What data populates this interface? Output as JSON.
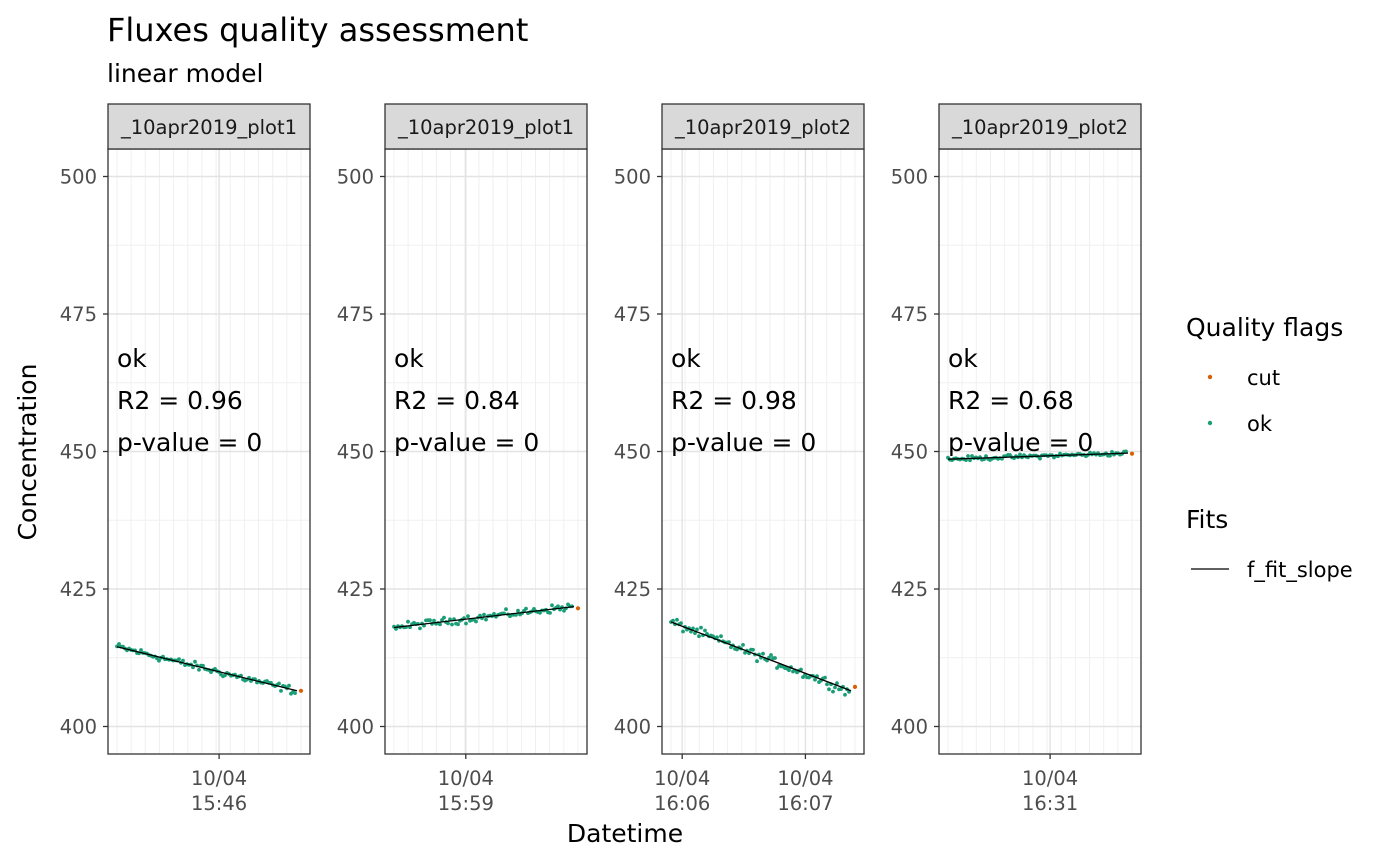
{
  "chart_data": {
    "type": "scatter",
    "title": "Fluxes quality assessment",
    "subtitle": "linear model",
    "xlabel": "Datetime",
    "ylabel": "Concentration",
    "ylim": [
      395,
      505
    ],
    "yticks": [
      400,
      425,
      450,
      475,
      500
    ],
    "grid": true,
    "legend_position": "right",
    "legend": {
      "quality_title": "Quality flags",
      "quality_entries": [
        {
          "label": "cut",
          "color": "#D95F02"
        },
        {
          "label": "ok",
          "color": "#1B9E77"
        }
      ],
      "fits_title": "Fits",
      "fits_entries": [
        {
          "label": "f_fit_slope",
          "color": "#000000"
        }
      ]
    },
    "panels": [
      {
        "strip": "_10apr2019_plot1",
        "ticks": [
          {
            "date": "10/04",
            "time": "15:46",
            "pos": 0.55
          }
        ],
        "annotation": [
          "ok",
          "R2 = 0.96",
          "p-value = 0"
        ],
        "fit": {
          "start": 414.5,
          "end": 406.5
        },
        "noise": 0.7,
        "cut_value": 406.5
      },
      {
        "strip": "_10apr2019_plot1",
        "ticks": [
          {
            "date": "10/04",
            "time": "15:59",
            "pos": 0.4
          }
        ],
        "annotation": [
          "ok",
          "R2 = 0.84",
          "p-value = 0"
        ],
        "fit": {
          "start": 418.0,
          "end": 421.8
        },
        "noise": 0.7,
        "cut_value": 421.5
      },
      {
        "strip": "_10apr2019_plot2",
        "ticks": [
          {
            "date": "10/04",
            "time": "16:06",
            "pos": 0.1
          },
          {
            "date": "10/04",
            "time": "16:07",
            "pos": 0.71
          }
        ],
        "annotation": [
          "ok",
          "R2 = 0.98",
          "p-value = 0"
        ],
        "fit": {
          "start": 419.0,
          "end": 406.5
        },
        "noise": 0.9,
        "cut_value": 407.2
      },
      {
        "strip": "_10apr2019_plot2",
        "ticks": [
          {
            "date": "10/04",
            "time": "16:31",
            "pos": 0.55
          }
        ],
        "annotation": [
          "ok",
          "R2 = 0.68",
          "p-value = 0"
        ],
        "fit": {
          "start": 448.6,
          "end": 449.7
        },
        "noise": 0.4,
        "cut_value": 449.6
      }
    ]
  }
}
